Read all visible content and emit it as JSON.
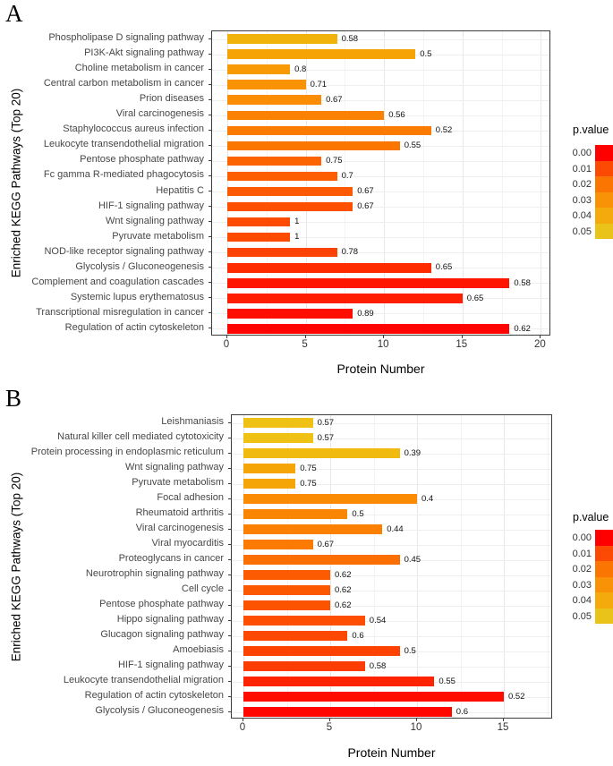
{
  "figure": {
    "background": "#ffffff"
  },
  "charts": [
    {
      "panel_label": "A",
      "ylab": "Enriched KEGG Pathways (Top 20)",
      "xlab": "Protein Number",
      "x_ticks": [
        0,
        5,
        10,
        15,
        20
      ],
      "legend": {
        "title": "p.value",
        "position": "right",
        "entries": [
          {
            "label": "0.00",
            "color": "#ff0000"
          },
          {
            "label": "0.01",
            "color": "#fc4903"
          },
          {
            "label": "0.02",
            "color": "#fa7502"
          },
          {
            "label": "0.03",
            "color": "#f99207"
          },
          {
            "label": "0.04",
            "color": "#f4a90c"
          },
          {
            "label": "0.05",
            "color": "#e9c319"
          }
        ]
      },
      "chart_data": {
        "type": "bar",
        "orientation": "horizontal",
        "xlabel": "Protein Number",
        "ylabel": "Enriched KEGG Pathways (Top 20)",
        "xlim": [
          0,
          20.7
        ],
        "grid": true,
        "bars": [
          {
            "pathway": "Phospholipase D signaling pathway",
            "protein_number": 7,
            "value_label": "0.58",
            "color": "#f1b30a"
          },
          {
            "pathway": "PI3K-Akt signaling pathway",
            "protein_number": 12,
            "value_label": "0.5",
            "color": "#f6a306"
          },
          {
            "pathway": "Choline metabolism in cancer",
            "protein_number": 4,
            "value_label": "0.8",
            "color": "#f89a05"
          },
          {
            "pathway": "Central carbon metabolism in cancer",
            "protein_number": 5,
            "value_label": "0.71",
            "color": "#f99304"
          },
          {
            "pathway": "Prion diseases",
            "protein_number": 6,
            "value_label": "0.67",
            "color": "#fa8d03"
          },
          {
            "pathway": "Viral carcinogenesis",
            "protein_number": 10,
            "value_label": "0.56",
            "color": "#fa8102"
          },
          {
            "pathway": "Staphylococcus aureus infection",
            "protein_number": 13,
            "value_label": "0.52",
            "color": "#fb7b01"
          },
          {
            "pathway": "Leukocyte transendothelial migration",
            "protein_number": 11,
            "value_label": "0.55",
            "color": "#fb7601"
          },
          {
            "pathway": "Pentose phosphate pathway",
            "protein_number": 6,
            "value_label": "0.75",
            "color": "#fc6301"
          },
          {
            "pathway": "Fc gamma R-mediated phagocytosis",
            "protein_number": 7,
            "value_label": "0.7",
            "color": "#fc5e01"
          },
          {
            "pathway": "Hepatitis C",
            "protein_number": 8,
            "value_label": "0.67",
            "color": "#fc5901"
          },
          {
            "pathway": "HIF-1 signaling pathway",
            "protein_number": 8,
            "value_label": "0.67",
            "color": "#fd5101"
          },
          {
            "pathway": "Wnt signaling pathway",
            "protein_number": 4,
            "value_label": "1",
            "color": "#fd4c02"
          },
          {
            "pathway": "Pyruvate metabolism",
            "protein_number": 4,
            "value_label": "1",
            "color": "#fd4c02"
          },
          {
            "pathway": "NOD-like receptor signaling pathway",
            "protein_number": 7,
            "value_label": "0.78",
            "color": "#fd4302"
          },
          {
            "pathway": "Glycolysis / Gluconeogenesis",
            "protein_number": 13,
            "value_label": "0.65",
            "color": "#fe2b01"
          },
          {
            "pathway": "Complement and coagulation cascades",
            "protein_number": 18,
            "value_label": "0.58",
            "color": "#ff1601"
          },
          {
            "pathway": "Systemic lupus erythematosus",
            "protein_number": 15,
            "value_label": "0.65",
            "color": "#ff1e01"
          },
          {
            "pathway": "Transcriptional misregulation in cancer",
            "protein_number": 8,
            "value_label": "0.89",
            "color": "#ff0e00"
          },
          {
            "pathway": "Regulation of actin cytoskeleton",
            "protein_number": 18,
            "value_label": "0.62",
            "color": "#ff0400"
          }
        ]
      }
    },
    {
      "panel_label": "B",
      "ylab": "Enriched KEGG Pathways (Top 20)",
      "xlab": "Protein Number",
      "x_ticks": [
        0,
        5,
        10,
        15
      ],
      "legend": {
        "title": "p.value",
        "position": "right",
        "entries": [
          {
            "label": "0.00",
            "color": "#ff0000"
          },
          {
            "label": "0.01",
            "color": "#fc4903"
          },
          {
            "label": "0.02",
            "color": "#fa7502"
          },
          {
            "label": "0.03",
            "color": "#f99207"
          },
          {
            "label": "0.04",
            "color": "#f4a90c"
          },
          {
            "label": "0.05",
            "color": "#e9c319"
          }
        ]
      },
      "chart_data": {
        "type": "bar",
        "orientation": "horizontal",
        "xlabel": "Protein Number",
        "ylabel": "Enriched KEGG Pathways (Top 20)",
        "xlim": [
          0,
          17.8
        ],
        "grid": true,
        "bars": [
          {
            "pathway": "Leishmaniasis",
            "protein_number": 4,
            "value_label": "0.57",
            "color": "#efc115"
          },
          {
            "pathway": "Natural killer cell mediated cytotoxicity",
            "protein_number": 4,
            "value_label": "0.57",
            "color": "#efc115"
          },
          {
            "pathway": "Protein processing in endoplasmic reticulum",
            "protein_number": 9,
            "value_label": "0.39",
            "color": "#f1ba0e"
          },
          {
            "pathway": "Wnt signaling pathway",
            "protein_number": 3,
            "value_label": "0.75",
            "color": "#f6a508"
          },
          {
            "pathway": "Pyruvate metabolism",
            "protein_number": 3,
            "value_label": "0.75",
            "color": "#f6a508"
          },
          {
            "pathway": "Focal adhesion",
            "protein_number": 10,
            "value_label": "0.4",
            "color": "#fa8b03"
          },
          {
            "pathway": "Rheumatoid arthritis",
            "protein_number": 6,
            "value_label": "0.5",
            "color": "#fa8503"
          },
          {
            "pathway": "Viral carcinogenesis",
            "protein_number": 8,
            "value_label": "0.44",
            "color": "#fb8002"
          },
          {
            "pathway": "Viral myocarditis",
            "protein_number": 4,
            "value_label": "0.67",
            "color": "#fb7a02"
          },
          {
            "pathway": "Proteoglycans in cancer",
            "protein_number": 9,
            "value_label": "0.45",
            "color": "#fb6e01"
          },
          {
            "pathway": "Neurotrophin signaling pathway",
            "protein_number": 5,
            "value_label": "0.62",
            "color": "#fc5b01"
          },
          {
            "pathway": "Cell cycle",
            "protein_number": 5,
            "value_label": "0.62",
            "color": "#fc5701"
          },
          {
            "pathway": "Pentose phosphate pathway",
            "protein_number": 5,
            "value_label": "0.62",
            "color": "#fc5301"
          },
          {
            "pathway": "Hippo signaling pathway",
            "protein_number": 7,
            "value_label": "0.54",
            "color": "#fd4e02"
          },
          {
            "pathway": "Glucagon signaling pathway",
            "protein_number": 6,
            "value_label": "0.6",
            "color": "#fd4802"
          },
          {
            "pathway": "Amoebiasis",
            "protein_number": 9,
            "value_label": "0.5",
            "color": "#fd4202"
          },
          {
            "pathway": "HIF-1 signaling pathway",
            "protein_number": 7,
            "value_label": "0.58",
            "color": "#fd3c01"
          },
          {
            "pathway": "Leukocyte transendothelial migration",
            "protein_number": 11,
            "value_label": "0.55",
            "color": "#fe2401"
          },
          {
            "pathway": "Regulation of actin cytoskeleton",
            "protein_number": 15,
            "value_label": "0.52",
            "color": "#ff0c00"
          },
          {
            "pathway": "Glycolysis / Gluconeogenesis",
            "protein_number": 12,
            "value_label": "0.6",
            "color": "#ff0600"
          }
        ]
      }
    }
  ]
}
